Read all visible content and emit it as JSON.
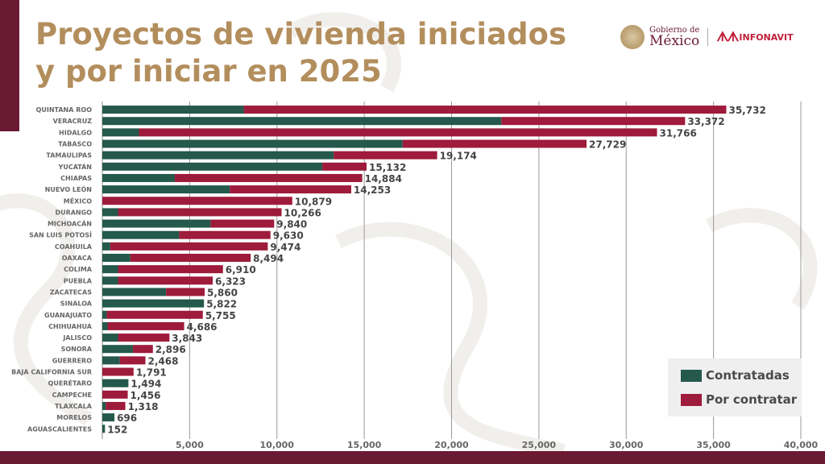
{
  "header": {
    "title_line1": "Proyectos de vivienda iniciados",
    "title_line2": "y por iniciar en 2025",
    "logo_gobierno_small": "Gobierno de",
    "logo_gobierno_big": "México",
    "logo_infonavit": "INFONAVIT",
    "logo_infonavit_mark": "ᗑᗑ"
  },
  "colors": {
    "contratadas": "#24594b",
    "por_contratar": "#9e1b3b",
    "title": "#b38e5d",
    "brand_dark": "#6b1a33",
    "label_text": "#666666",
    "value_text": "#444444"
  },
  "chart_data": {
    "type": "bar",
    "orientation": "horizontal",
    "stacked": true,
    "title": "Proyectos de vivienda iniciados y por iniciar en 2025",
    "xlabel": "",
    "ylabel": "",
    "xlim": [
      0,
      40000
    ],
    "xticks": [
      5000,
      10000,
      15000,
      20000,
      25000,
      30000,
      35000,
      40000
    ],
    "xtick_labels": [
      "5,000",
      "10,000",
      "15,000",
      "20,000",
      "25,000",
      "30,000",
      "35,000",
      "40,000"
    ],
    "grid": true,
    "legend_position": "bottom-right",
    "categories": [
      "QUINTANA ROO",
      "VERACRUZ",
      "HIDALGO",
      "TABASCO",
      "TAMAULIPAS",
      "YUCATÁN",
      "CHIAPAS",
      "NUEVO LEÓN",
      "MÉXICO",
      "DURANGO",
      "MICHOACÁN",
      "SAN LUIS POTOSÍ",
      "COAHUILA",
      "OAXACA",
      "COLIMA",
      "PUEBLA",
      "ZACATECAS",
      "SINALOA",
      "GUANAJUATO",
      "CHIHUAHUA",
      "JALISCO",
      "SONORA",
      "GUERRERO",
      "BAJA CALIFORNIA SUR",
      "QUERÉTARO",
      "CAMPECHE",
      "TLAXCALA",
      "MORELOS",
      "AGUASCALIENTES"
    ],
    "totals": [
      35732,
      33372,
      31766,
      27729,
      19174,
      15132,
      14884,
      14253,
      10879,
      10266,
      9840,
      9630,
      9474,
      8494,
      6910,
      6323,
      5860,
      5822,
      5755,
      4686,
      3843,
      2896,
      2468,
      1791,
      1494,
      1456,
      1318,
      696,
      152
    ],
    "total_labels": [
      "35,732",
      "33,372",
      "31,766",
      "27,729",
      "19,174",
      "15,132",
      "14,884",
      "14,253",
      "10,879",
      "10,266",
      "9,840",
      "9,630",
      "9,474",
      "8,494",
      "6,910",
      "6,323",
      "5,860",
      "5,822",
      "5,755",
      "4,686",
      "3,843",
      "2,896",
      "2,468",
      "1,791",
      "1,494",
      "1,456",
      "1,318",
      "696",
      "152"
    ],
    "series": [
      {
        "name": "Contratadas",
        "values": [
          8100,
          22850,
          2100,
          17200,
          13250,
          12600,
          4150,
          7300,
          0,
          900,
          6200,
          4400,
          450,
          1600,
          900,
          900,
          3650,
          5822,
          250,
          300,
          900,
          1750,
          1000,
          0,
          1494,
          0,
          200,
          696,
          152
        ]
      },
      {
        "name": "Por contratar",
        "values": [
          27632,
          10522,
          29666,
          10529,
          5924,
          2532,
          10734,
          6953,
          10879,
          9366,
          3640,
          5230,
          9024,
          6894,
          6010,
          5423,
          2210,
          0,
          5505,
          4386,
          2943,
          1146,
          1468,
          1791,
          0,
          1456,
          1118,
          0,
          0
        ]
      }
    ]
  },
  "legend": {
    "items": [
      {
        "label": "Contratadas"
      },
      {
        "label": "Por contratar"
      }
    ]
  }
}
